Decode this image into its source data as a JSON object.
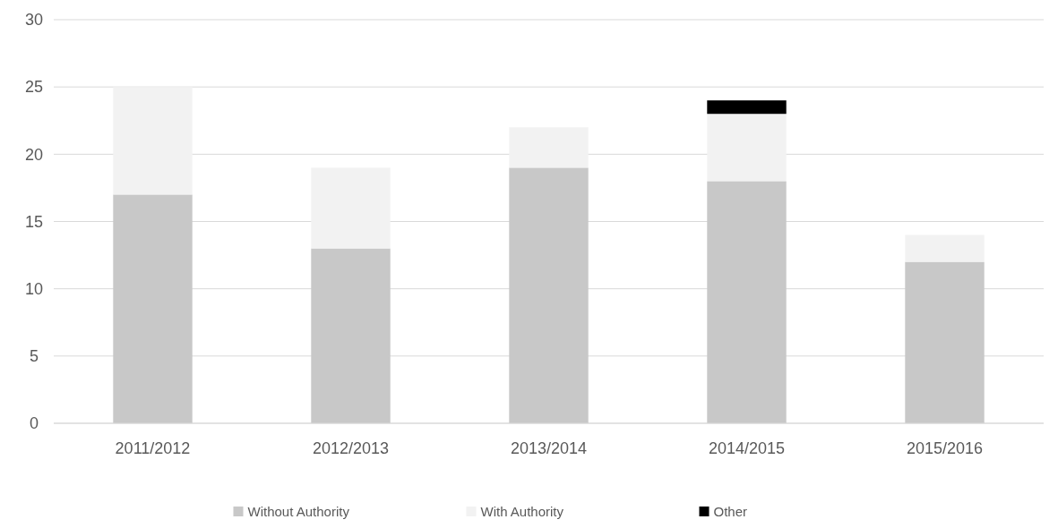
{
  "chart_data": {
    "type": "bar",
    "stacked": true,
    "categories": [
      "2011/2012",
      "2012/2013",
      "2013/2014",
      "2014/2015",
      "2015/2016"
    ],
    "series": [
      {
        "name": "Without Authority",
        "color": "#c8c8c8",
        "values": [
          17,
          13,
          19,
          18,
          12
        ]
      },
      {
        "name": "With Authority",
        "color": "#f2f2f2",
        "values": [
          8,
          6,
          3,
          5,
          2
        ]
      },
      {
        "name": "Other",
        "color": "#000000",
        "values": [
          null,
          null,
          null,
          1,
          null
        ]
      }
    ],
    "ylim": [
      0,
      30
    ],
    "yticks": [
      0,
      5,
      10,
      15,
      20,
      25,
      30
    ],
    "grid": "y",
    "legend": "bottom"
  }
}
